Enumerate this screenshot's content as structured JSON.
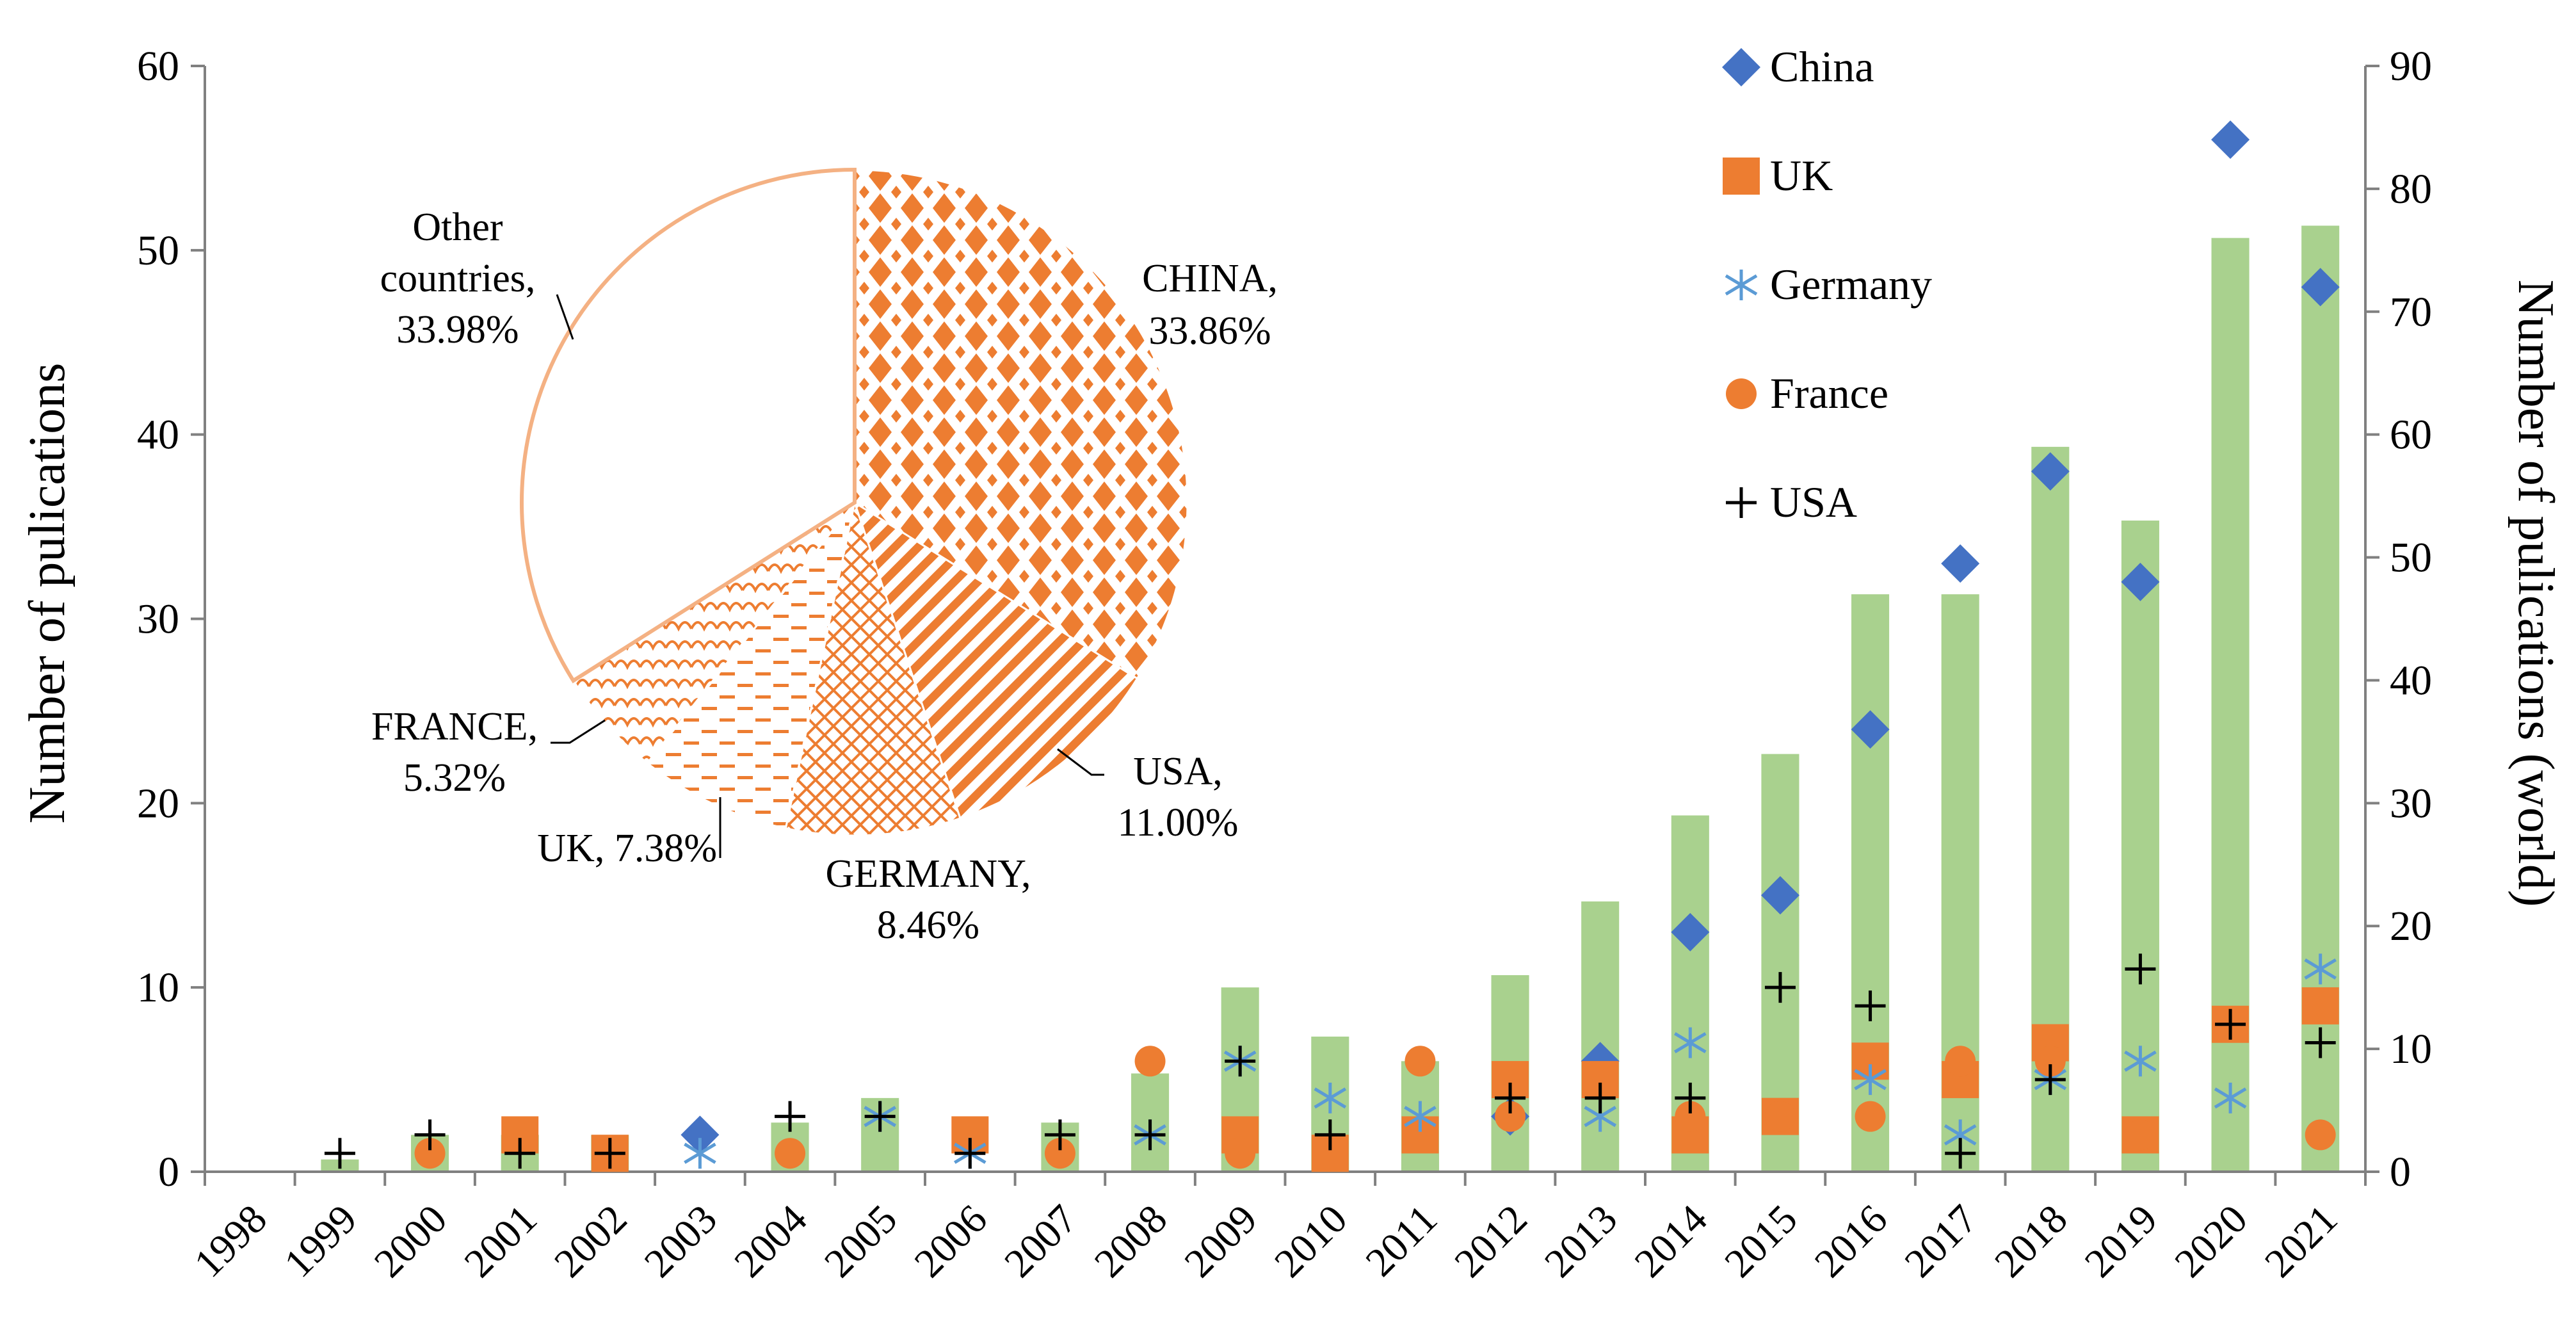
{
  "colors": {
    "bar": "#a9d18e",
    "china": "#4472c4",
    "uk": "#ed7d31",
    "germany": "#5b9bd5",
    "france": "#ed7d31",
    "usa": "#000000",
    "pie": "#ed7d31",
    "pie_other_edge": "#f4b183",
    "axis": "#808080"
  },
  "chart_data": {
    "type": "bar",
    "years": [
      "1998",
      "1999",
      "2000",
      "2001",
      "2002",
      "2003",
      "2004",
      "2005",
      "2006",
      "2007",
      "2008",
      "2009",
      "2010",
      "2011",
      "2012",
      "2013",
      "2014",
      "2015",
      "2016",
      "2017",
      "2018",
      "2019",
      "2020",
      "2021"
    ],
    "world_bars": {
      "name": "World",
      "axis": "right",
      "values": [
        0,
        1,
        3,
        3,
        3,
        0,
        4,
        6,
        0,
        4,
        8,
        15,
        11,
        9,
        16,
        22,
        29,
        34,
        47,
        47,
        59,
        53,
        76,
        77
      ]
    },
    "series": [
      {
        "name": "China",
        "marker": "diamond",
        "values": [
          null,
          null,
          null,
          null,
          null,
          2,
          null,
          null,
          null,
          null,
          null,
          null,
          null,
          null,
          3,
          6,
          13,
          15,
          24,
          33,
          38,
          32,
          56,
          48
        ]
      },
      {
        "name": "UK",
        "marker": "square",
        "values": [
          null,
          null,
          null,
          2,
          1,
          null,
          null,
          null,
          2,
          null,
          null,
          2,
          1,
          2,
          5,
          5,
          2,
          3,
          6,
          5,
          7,
          2,
          8,
          9
        ]
      },
      {
        "name": "Germany",
        "marker": "asterisk",
        "values": [
          null,
          null,
          null,
          null,
          null,
          1,
          null,
          3,
          1,
          null,
          2,
          6,
          4,
          3,
          null,
          3,
          7,
          null,
          5,
          2,
          5,
          6,
          4,
          11
        ]
      },
      {
        "name": "France",
        "marker": "circle",
        "values": [
          null,
          null,
          1,
          null,
          null,
          null,
          1,
          null,
          null,
          1,
          6,
          1,
          null,
          6,
          3,
          null,
          3,
          3,
          3,
          6,
          6,
          2,
          null,
          2
        ]
      },
      {
        "name": "USA",
        "marker": "plus",
        "values": [
          null,
          1,
          2,
          1,
          1,
          null,
          3,
          3,
          1,
          2,
          2,
          6,
          2,
          null,
          4,
          4,
          4,
          10,
          9,
          1,
          5,
          11,
          8,
          7
        ]
      }
    ],
    "y_left": {
      "label": "Number of pulications",
      "min": 0,
      "max": 60,
      "step": 10,
      "ticks": [
        "0",
        "10",
        "20",
        "30",
        "40",
        "50",
        "60"
      ]
    },
    "y_right": {
      "label": "Number of pulications (world)",
      "min": 0,
      "max": 90,
      "step": 10,
      "ticks": [
        "0",
        "10",
        "20",
        "30",
        "40",
        "50",
        "60",
        "70",
        "80",
        "90"
      ]
    },
    "legend": [
      "China",
      "UK",
      "Germany",
      "France",
      "USA"
    ],
    "pie": {
      "slices": [
        {
          "name": "CHINA",
          "label": "CHINA,",
          "pct_label": "33.86%",
          "value": 33.86,
          "pattern": "diamond-grid"
        },
        {
          "name": "USA",
          "label": "USA,",
          "pct_label": "11.00%",
          "value": 11.0,
          "pattern": "diagonal"
        },
        {
          "name": "GERMANY",
          "label": "GERMANY,",
          "pct_label": "8.46%",
          "value": 8.46,
          "pattern": "crosshatch"
        },
        {
          "name": "UK",
          "label": "UK, 7.38%",
          "pct_label": "",
          "value": 7.38,
          "pattern": "dashes"
        },
        {
          "name": "FRANCE",
          "label": "FRANCE,",
          "pct_label": "5.32%",
          "value": 5.32,
          "pattern": "scallop"
        },
        {
          "name": "Other countries",
          "label": "Other",
          "label2": "countries,",
          "pct_label": "33.98%",
          "value": 33.98,
          "pattern": "none"
        }
      ]
    }
  }
}
